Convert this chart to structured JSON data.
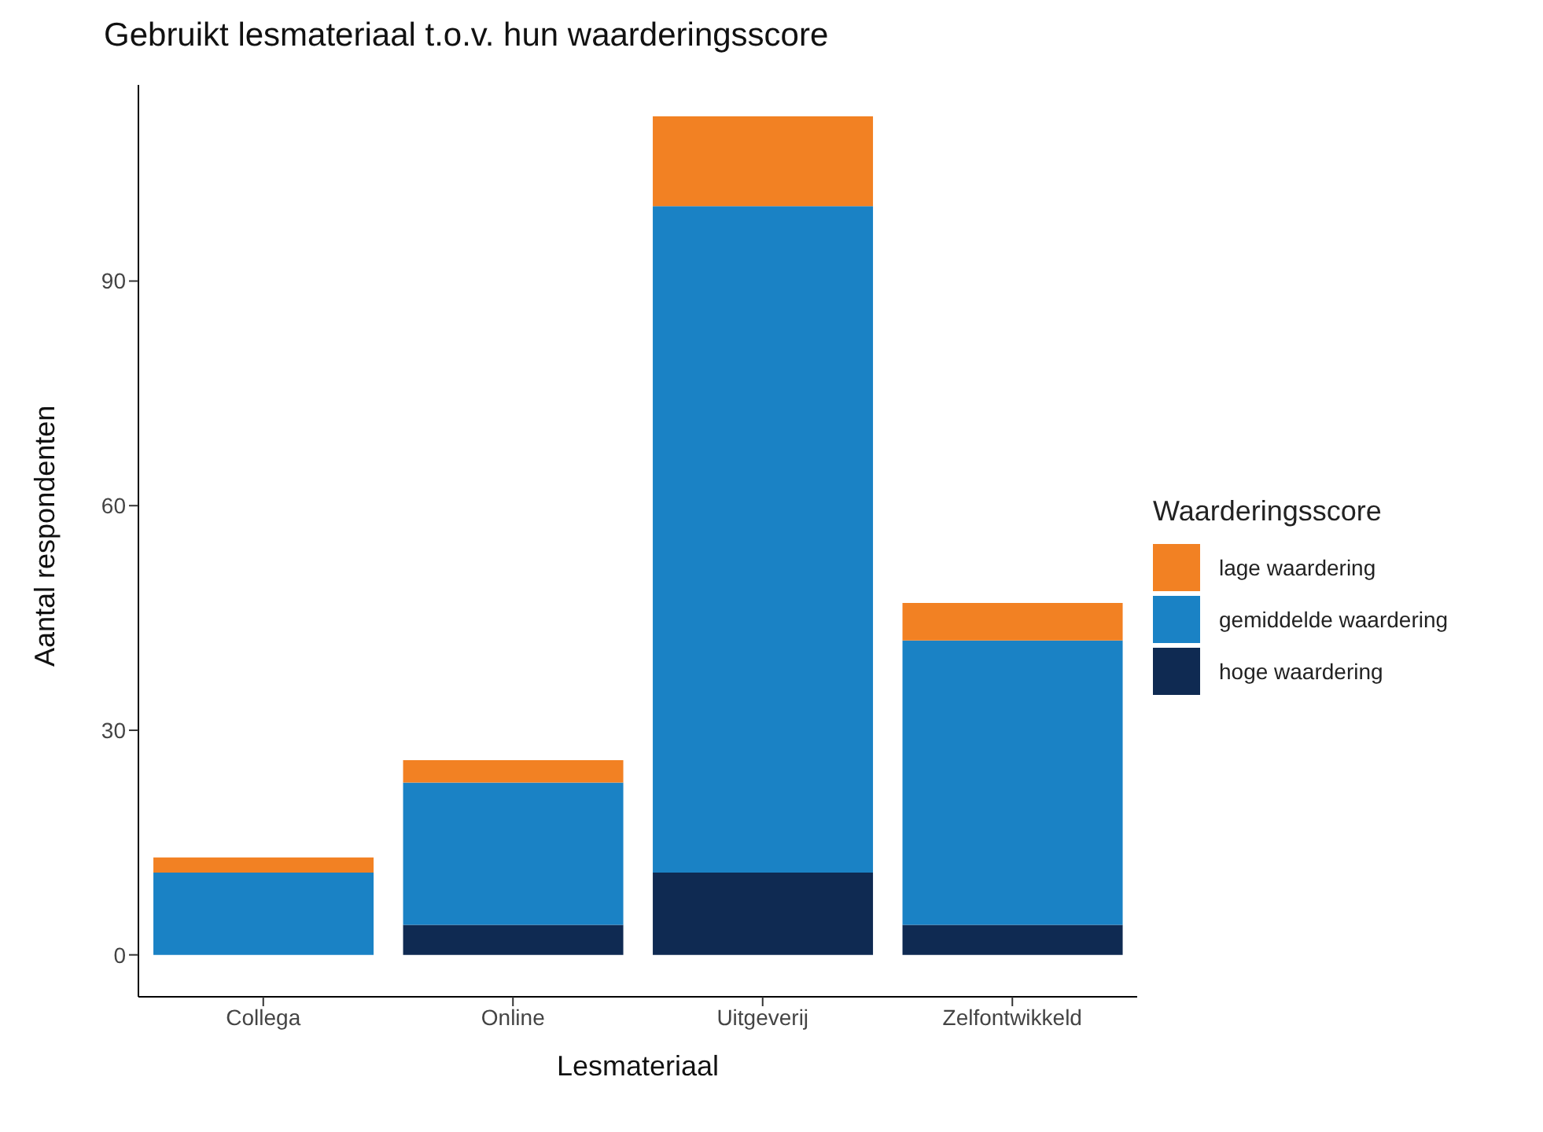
{
  "chart_data": {
    "type": "bar",
    "title": "Gebruikt lesmateriaal t.o.v. hun waarderingsscore",
    "xlabel": "Lesmateriaal",
    "ylabel": "Aantal respondenten",
    "legend_title": "Waarderingsscore",
    "categories": [
      "Collega",
      "Online",
      "Uitgeverij",
      "Zelfontwikkeld"
    ],
    "series": [
      {
        "name": "hoge waardering",
        "color": "#0f2a52",
        "values": [
          0,
          4,
          11,
          4
        ]
      },
      {
        "name": "gemiddelde waardering",
        "color": "#1a82c5",
        "values": [
          11,
          19,
          89,
          38
        ]
      },
      {
        "name": "lage waardering",
        "color": "#f28123",
        "values": [
          2,
          3,
          12,
          5
        ]
      }
    ],
    "stacked": true,
    "ylim": [
      -5.6,
      116.2
    ],
    "yticks": [
      0,
      30,
      60,
      90
    ],
    "grid": false,
    "legend": "right"
  }
}
